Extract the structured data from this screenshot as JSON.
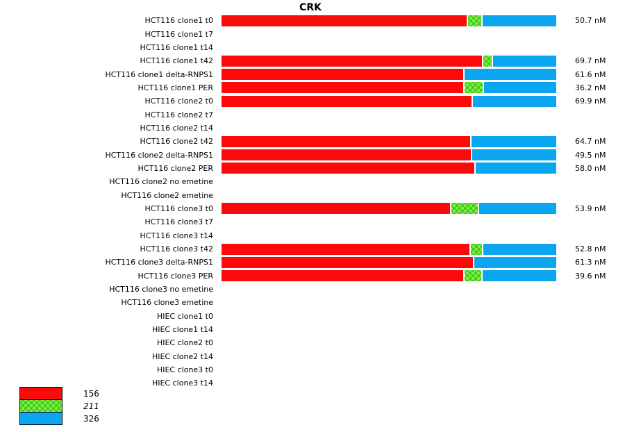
{
  "title": "CRK",
  "colors": {
    "red": "#F90B0B",
    "green_base": "#3CCD0E",
    "green_dot": "#82E951",
    "blue": "#0AA6F0",
    "text": "#000000",
    "background": "#FFFFFF"
  },
  "legend": {
    "items": [
      {
        "label": "156",
        "series": "red",
        "italic": false
      },
      {
        "label": "211",
        "series": "green",
        "italic": true
      },
      {
        "label": "326",
        "series": "blue",
        "italic": false
      }
    ]
  },
  "chart_data": {
    "type": "bar",
    "orientation": "horizontal",
    "stacked": true,
    "title": "CRK",
    "value_unit": "nM",
    "legend_position": "bottom-left",
    "grid": false,
    "series_names": [
      "156",
      "211",
      "326"
    ],
    "rows": [
      {
        "label": "HCT116 clone1 t0",
        "value_nM": 50.7,
        "value_label": "50.7 nM",
        "segments_pct": {
          "red": 73.2,
          "green": 4.0,
          "blue": 22.8
        }
      },
      {
        "label": "HCT116 clone1 t7",
        "value_nM": null,
        "value_label": "",
        "segments_pct": null
      },
      {
        "label": "HCT116 clone1 t14",
        "value_nM": null,
        "value_label": "",
        "segments_pct": null
      },
      {
        "label": "HCT116 clone1 t42",
        "value_nM": 69.7,
        "value_label": "69.7 nM",
        "segments_pct": {
          "red": 77.8,
          "green": 2.4,
          "blue": 19.8
        }
      },
      {
        "label": "HCT116 clone1 delta-RNPS1",
        "value_nM": 61.6,
        "value_label": "61.6 nM",
        "segments_pct": {
          "red": 72.3,
          "green": 0,
          "blue": 27.7
        }
      },
      {
        "label": "HCT116 clone1 PER",
        "value_nM": 36.2,
        "value_label": "36.2 nM",
        "segments_pct": {
          "red": 72.3,
          "green": 5.2,
          "blue": 22.5
        }
      },
      {
        "label": "HCT116 clone2 t0",
        "value_nM": 69.9,
        "value_label": "69.9 nM",
        "segments_pct": {
          "red": 74.6,
          "green": 0,
          "blue": 25.4
        }
      },
      {
        "label": "HCT116 clone2 t7",
        "value_nM": null,
        "value_label": "",
        "segments_pct": null
      },
      {
        "label": "HCT116 clone2 t14",
        "value_nM": null,
        "value_label": "",
        "segments_pct": null
      },
      {
        "label": "HCT116 clone2 t42",
        "value_nM": 64.7,
        "value_label": "64.7 nM",
        "segments_pct": {
          "red": 74.2,
          "green": 0,
          "blue": 25.8
        }
      },
      {
        "label": "HCT116 clone2 delta-RNPS1",
        "value_nM": 49.5,
        "value_label": "49.5 nM",
        "segments_pct": {
          "red": 74.4,
          "green": 0,
          "blue": 25.6
        }
      },
      {
        "label": "HCT116 clone2 PER",
        "value_nM": 58.0,
        "value_label": "58.0 nM",
        "segments_pct": {
          "red": 75.5,
          "green": 0,
          "blue": 24.5
        }
      },
      {
        "label": "HCT116 clone2 no emetine",
        "value_nM": null,
        "value_label": "",
        "segments_pct": null
      },
      {
        "label": "HCT116 clone2 emetine",
        "value_nM": null,
        "value_label": "",
        "segments_pct": null
      },
      {
        "label": "HCT116 clone3 t0",
        "value_nM": 53.9,
        "value_label": "53.9 nM",
        "segments_pct": {
          "red": 68.2,
          "green": 7.9,
          "blue": 23.9
        }
      },
      {
        "label": "HCT116 clone3 t7",
        "value_nM": null,
        "value_label": "",
        "segments_pct": null
      },
      {
        "label": "HCT116 clone3 t14",
        "value_nM": null,
        "value_label": "",
        "segments_pct": null
      },
      {
        "label": "HCT116 clone3 t42",
        "value_nM": 52.8,
        "value_label": "52.8 nM",
        "segments_pct": {
          "red": 74.0,
          "green": 3.4,
          "blue": 22.6
        }
      },
      {
        "label": "HCT116 clone3 delta-RNPS1",
        "value_nM": 61.3,
        "value_label": "61.3 nM",
        "segments_pct": {
          "red": 75.1,
          "green": 0,
          "blue": 24.9
        }
      },
      {
        "label": "HCT116 clone3 PER",
        "value_nM": 39.6,
        "value_label": "39.6 nM",
        "segments_pct": {
          "red": 72.3,
          "green": 4.8,
          "blue": 22.9
        }
      },
      {
        "label": "HCT116 clone3 no emetine",
        "value_nM": null,
        "value_label": "",
        "segments_pct": null
      },
      {
        "label": "HCT116 clone3 emetine",
        "value_nM": null,
        "value_label": "",
        "segments_pct": null
      },
      {
        "label": "HIEC clone1 t0",
        "value_nM": null,
        "value_label": "",
        "segments_pct": null
      },
      {
        "label": "HIEC clone1 t14",
        "value_nM": null,
        "value_label": "",
        "segments_pct": null
      },
      {
        "label": "HIEC clone2 t0",
        "value_nM": null,
        "value_label": "",
        "segments_pct": null
      },
      {
        "label": "HIEC clone2 t14",
        "value_nM": null,
        "value_label": "",
        "segments_pct": null
      },
      {
        "label": "HIEC clone3 t0",
        "value_nM": null,
        "value_label": "",
        "segments_pct": null
      },
      {
        "label": "HIEC clone3 t14",
        "value_nM": null,
        "value_label": "",
        "segments_pct": null
      }
    ]
  }
}
